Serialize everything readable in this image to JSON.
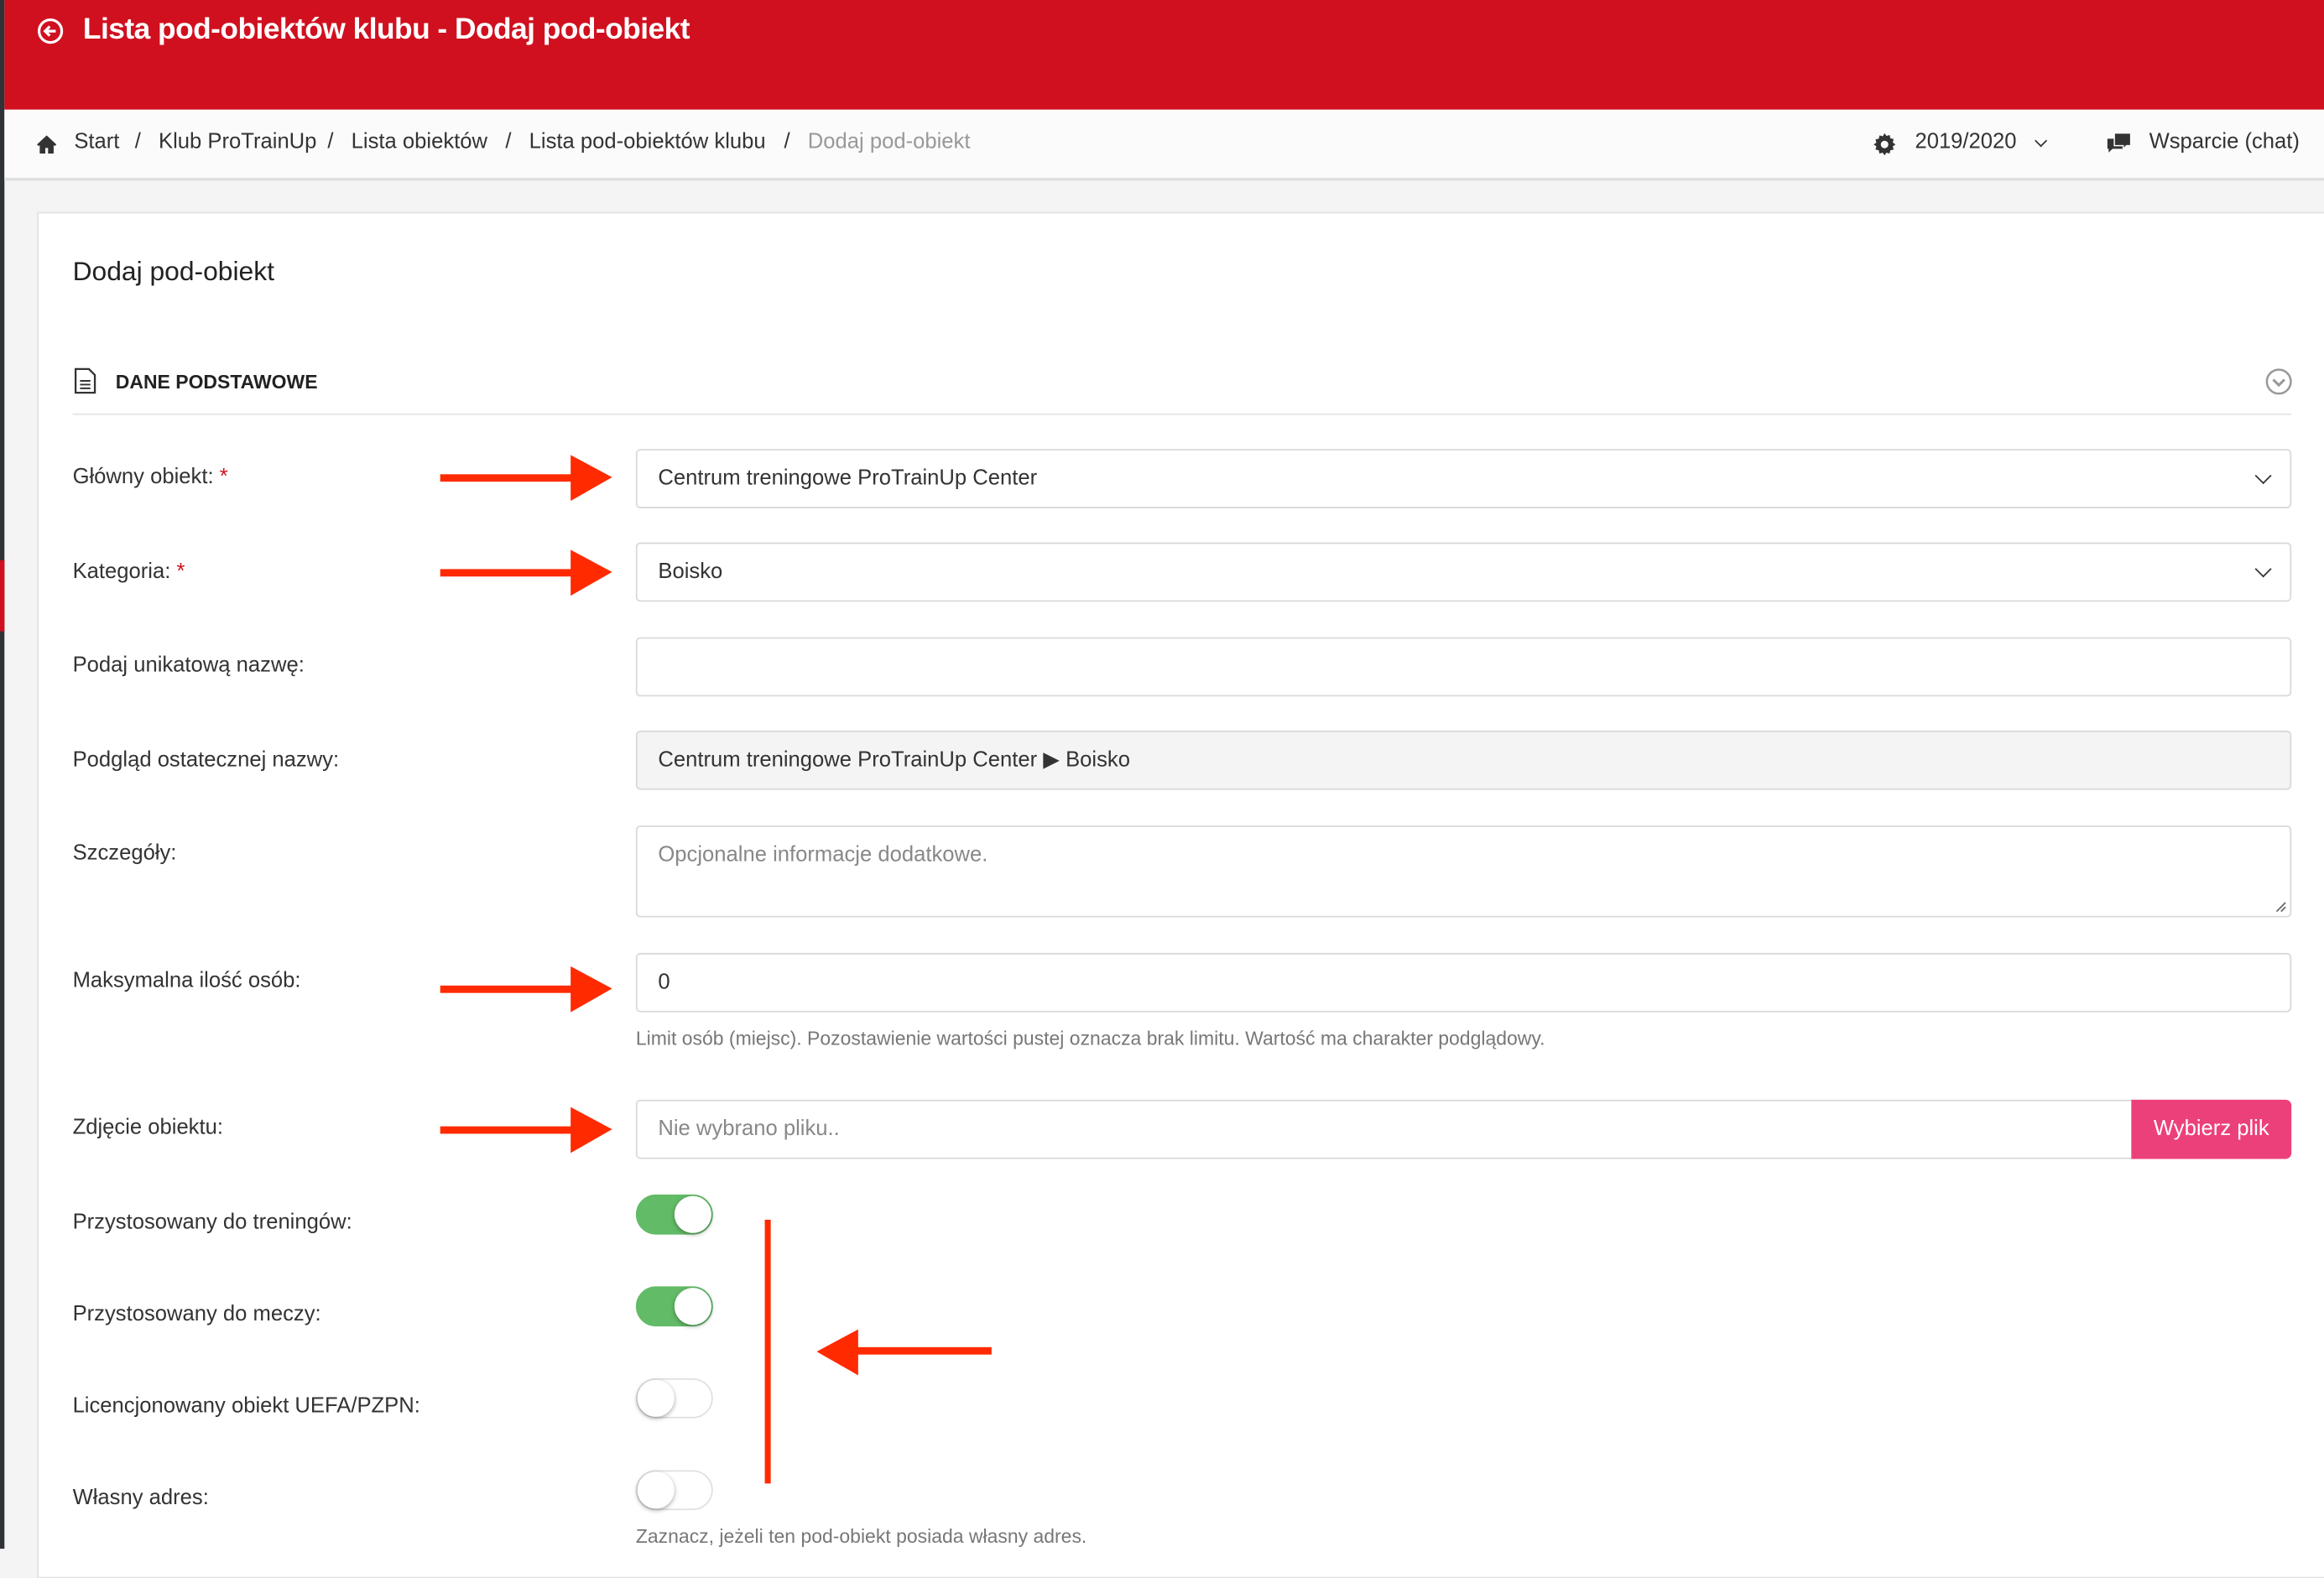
{
  "header": {
    "title": "Lista pod-obiektów klubu - Dodaj pod-obiekt",
    "color": "#d0101f"
  },
  "breadcrumb": {
    "items": [
      "Start",
      "Klub ProTrainUp",
      "Lista obiektów",
      "Lista pod-obiektów klubu"
    ],
    "current": "Dodaj pod-obiekt",
    "separator": "/"
  },
  "topright": {
    "season": "2019/2020",
    "support": "Wsparcie (chat)"
  },
  "card": {
    "title": "Dodaj pod-obiekt",
    "section": "DANE PODSTAWOWE"
  },
  "form": {
    "main_object": {
      "label": "Główny obiekt:",
      "required": "*",
      "value": "Centrum treningowe ProTrainUp Center"
    },
    "category": {
      "label": "Kategoria:",
      "required": "*",
      "value": "Boisko"
    },
    "unique_name": {
      "label": "Podaj unikatową nazwę:",
      "value": ""
    },
    "preview": {
      "label": "Podgląd ostatecznej nazwy:",
      "value": "Centrum treningowe ProTrainUp Center ▶ Boisko"
    },
    "details": {
      "label": "Szczegóły:",
      "placeholder": "Opcjonalne informacje dodatkowe."
    },
    "max_people": {
      "label": "Maksymalna ilość osób:",
      "value": "0",
      "help": "Limit osób (miejsc). Pozostawienie wartości pustej oznacza brak limitu. Wartość ma charakter podglądowy."
    },
    "photo": {
      "label": "Zdjęcie obiektu:",
      "placeholder": "Nie wybrano pliku..",
      "button": "Wybierz plik",
      "button_color": "#ec407a"
    },
    "toggles": [
      {
        "label": "Przystosowany do treningów:",
        "on": true
      },
      {
        "label": "Przystosowany do meczy:",
        "on": true
      },
      {
        "label": "Licencjonowany obiekt UEFA/PZPN:",
        "on": false
      },
      {
        "label": "Własny adres:",
        "on": false
      }
    ],
    "own_address_help": "Zaznacz, jeżeli ten pod-obiekt posiada własny adres."
  },
  "annotation_color": "#ff2a00"
}
